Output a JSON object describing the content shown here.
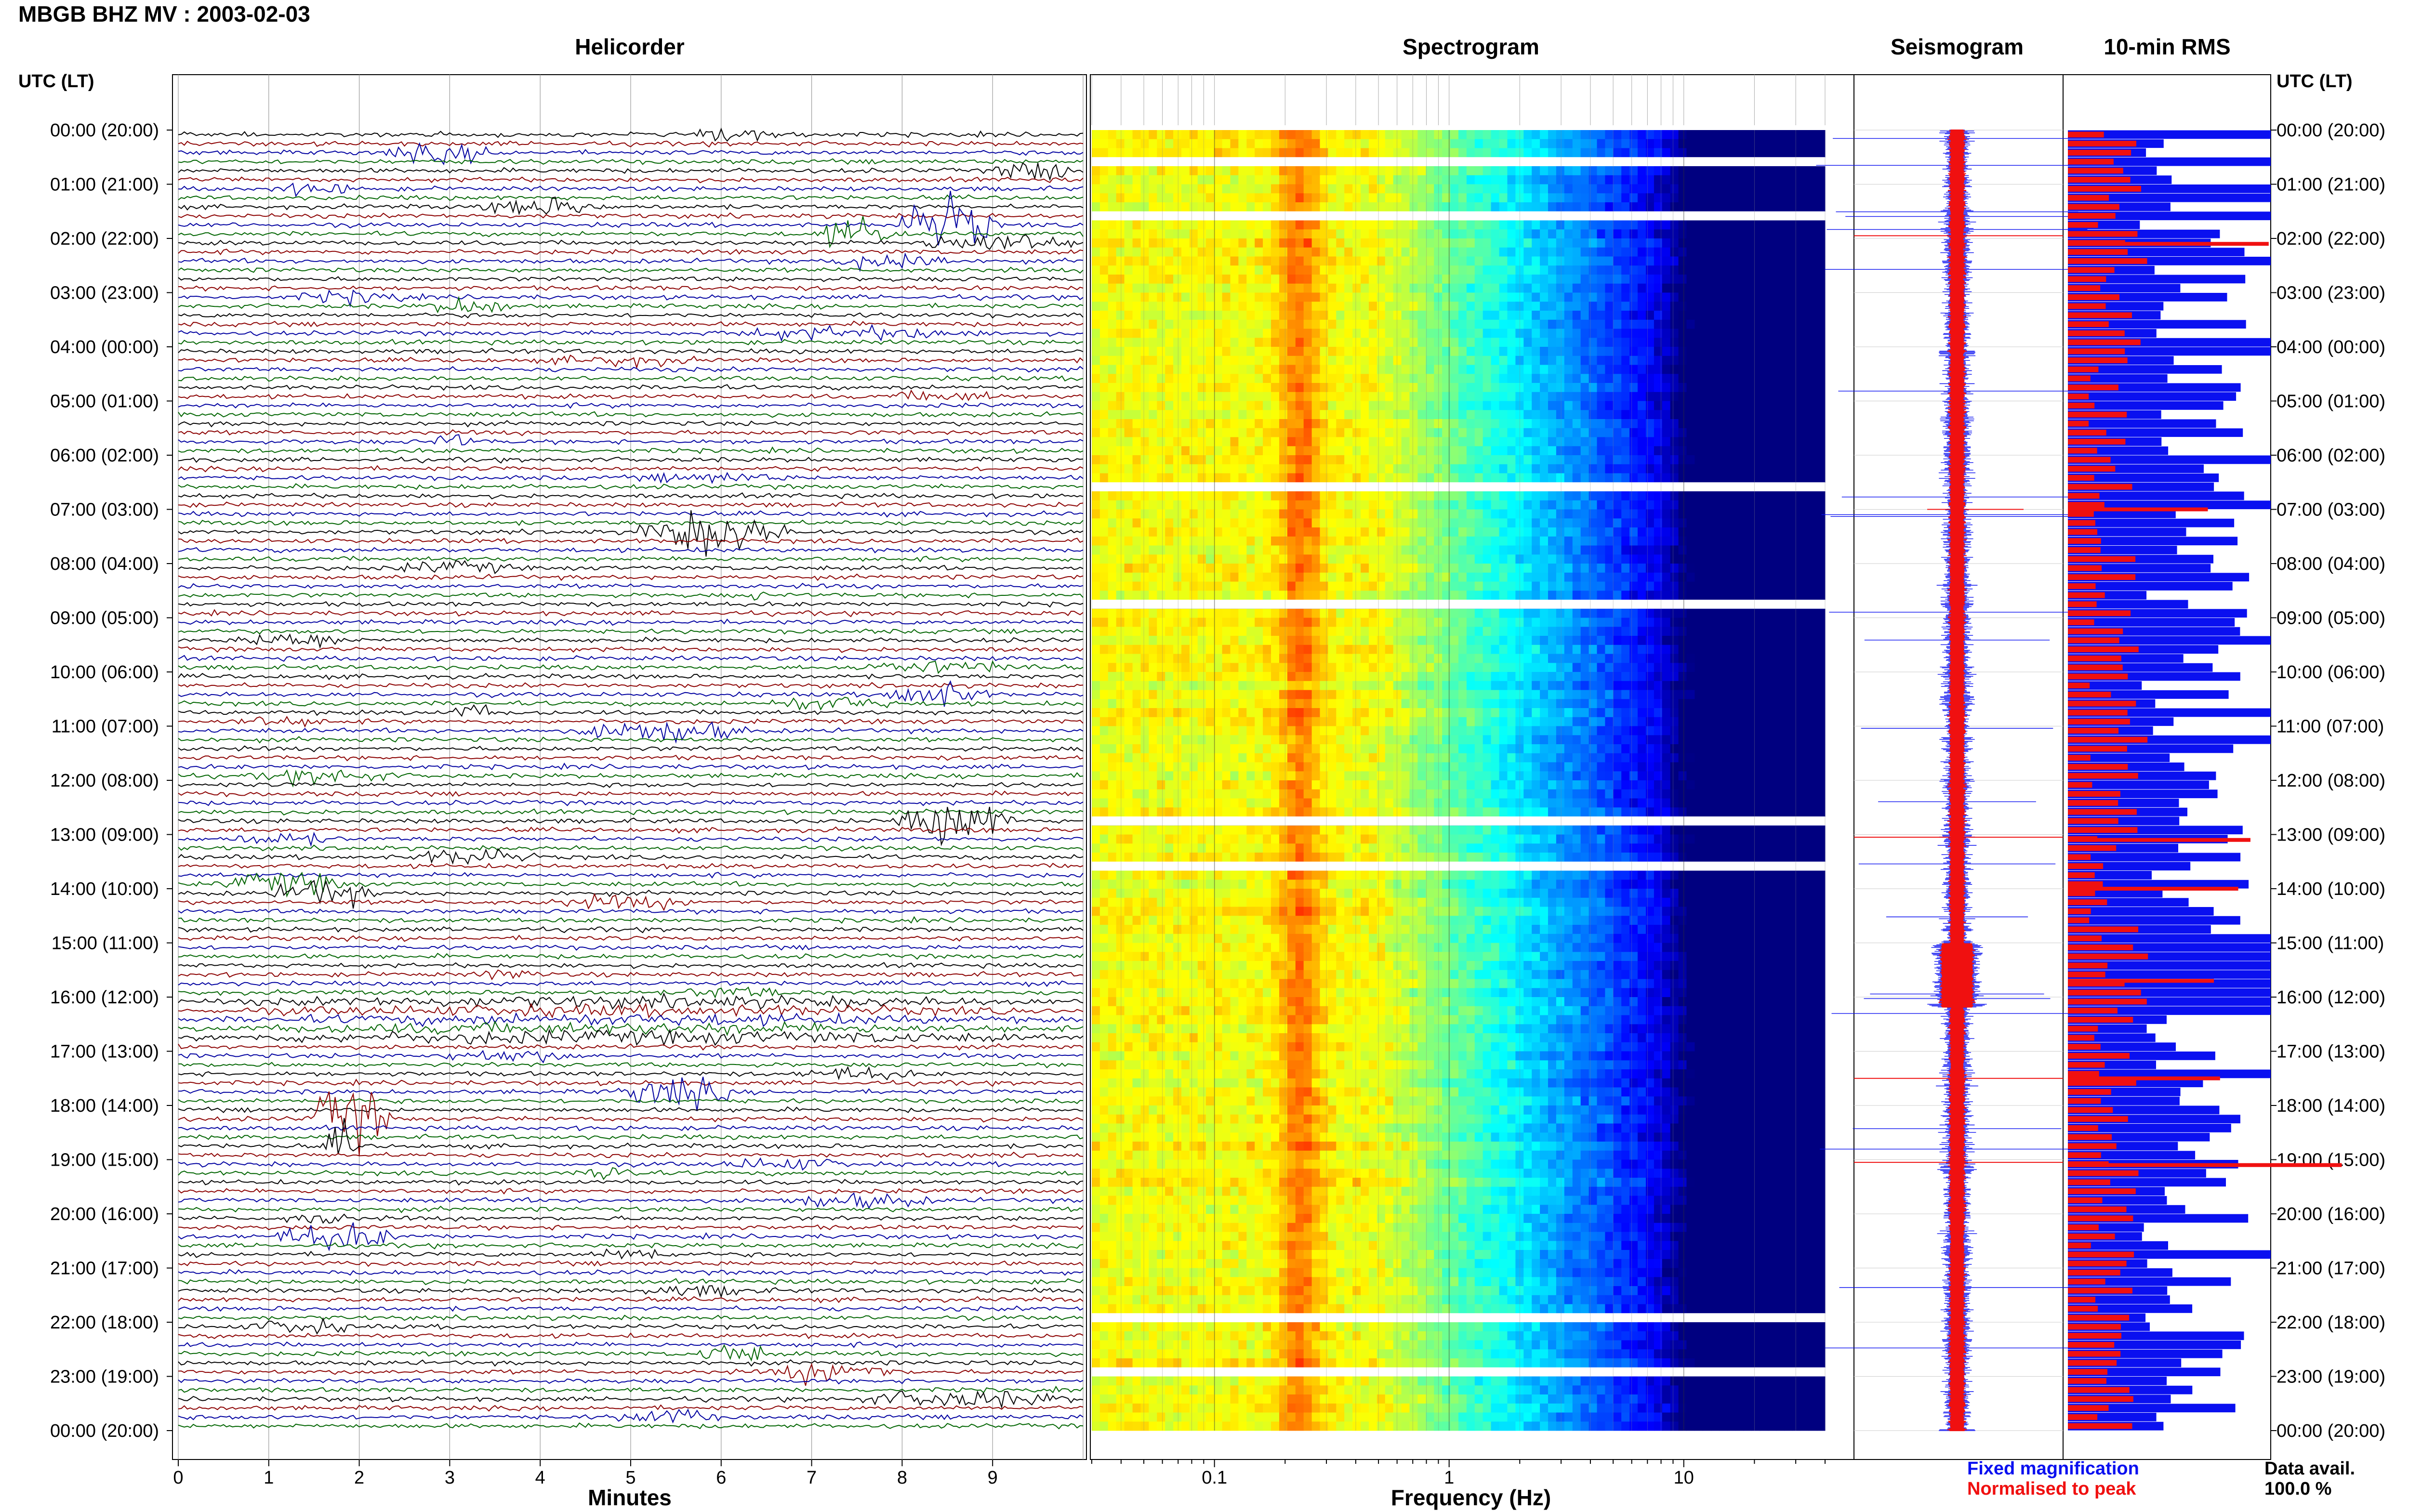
{
  "header": {
    "title": "MBGB BHZ MV : 2003-02-03",
    "utc_label_left": "UTC (LT)",
    "utc_label_right": "UTC (LT)"
  },
  "panels": {
    "helicorder": "Helicorder",
    "spectrogram": "Spectrogram",
    "seismogram": "Seismogram",
    "rms": "10-min RMS"
  },
  "hour_labels": [
    "00:00 (20:00)",
    "01:00 (21:00)",
    "02:00 (22:00)",
    "03:00 (23:00)",
    "04:00 (00:00)",
    "05:00 (01:00)",
    "06:00 (02:00)",
    "07:00 (03:00)",
    "08:00 (04:00)",
    "09:00 (05:00)",
    "10:00 (06:00)",
    "11:00 (07:00)",
    "12:00 (08:00)",
    "13:00 (09:00)",
    "14:00 (10:00)",
    "15:00 (11:00)",
    "16:00 (12:00)",
    "17:00 (13:00)",
    "18:00 (14:00)",
    "19:00 (15:00)",
    "20:00 (16:00)",
    "21:00 (17:00)",
    "22:00 (18:00)",
    "23:00 (19:00)",
    "00:00 (20:00)"
  ],
  "footer": {
    "minutes_label": "Minutes",
    "frequency_label": "Frequency (Hz)",
    "legend_fixed": "Fixed magnification",
    "legend_normalised": "Normalised to peak",
    "data_avail_label": "Data avail.",
    "data_avail_value": "100.0 %"
  },
  "colors": {
    "trace_cycle": [
      "#000000",
      "#8b0000",
      "#0000a0",
      "#006400"
    ],
    "rms_blue": "#0a10f0",
    "rms_red": "#f01010",
    "spectrogram_background": "#0a14c8"
  },
  "chart_data": {
    "helicorder": {
      "type": "line",
      "x_axis": {
        "label": "Minutes",
        "range": [
          0,
          10
        ],
        "ticks": [
          "0",
          "1",
          "2",
          "3",
          "4",
          "5",
          "6",
          "7",
          "8",
          "9"
        ]
      },
      "traces": 144,
      "minutes_per_trace": 10,
      "grid": true
    },
    "spectrogram": {
      "type": "heatmap",
      "x_axis": {
        "label": "Frequency (Hz)",
        "scale": "log",
        "range": [
          0.03,
          40
        ],
        "ticks": [
          "0.1",
          "1",
          "10"
        ]
      },
      "rows": 144,
      "peak_band_hz": [
        0.2,
        0.3
      ],
      "gap_rows": [
        3,
        9,
        39,
        52,
        76,
        81,
        131,
        137
      ]
    },
    "seismogram": {
      "type": "line",
      "series": [
        "Fixed magnification",
        "Normalised to peak"
      ]
    },
    "rms": {
      "type": "bar",
      "orientation": "horizontal",
      "bins": 144,
      "bin_minutes": 10,
      "series": [
        "Fixed magnification",
        "Normalised to peak"
      ]
    }
  }
}
